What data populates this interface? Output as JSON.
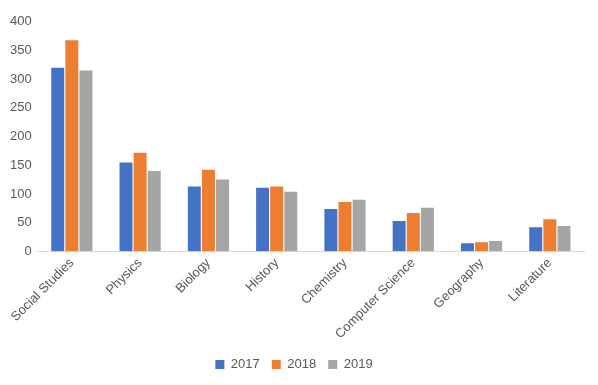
{
  "chart_data": {
    "type": "bar",
    "categories": [
      "Social Studies",
      "Physics",
      "Biology",
      "History",
      "Chemistry",
      "Computer Science",
      "Geography",
      "Literature"
    ],
    "series": [
      {
        "name": "2017",
        "color": "#4472c4",
        "values": [
          320,
          155,
          113,
          111,
          74,
          53,
          14,
          42
        ]
      },
      {
        "name": "2018",
        "color": "#ed7d31",
        "values": [
          368,
          172,
          142,
          113,
          86,
          67,
          16,
          56
        ]
      },
      {
        "name": "2019",
        "color": "#a5a5a5",
        "values": [
          315,
          140,
          125,
          104,
          90,
          76,
          18,
          44
        ]
      }
    ],
    "ylim": [
      0,
      400
    ],
    "yticks": [
      0,
      50,
      100,
      150,
      200,
      250,
      300,
      350,
      400
    ],
    "grid": false,
    "legend": "bottom"
  }
}
